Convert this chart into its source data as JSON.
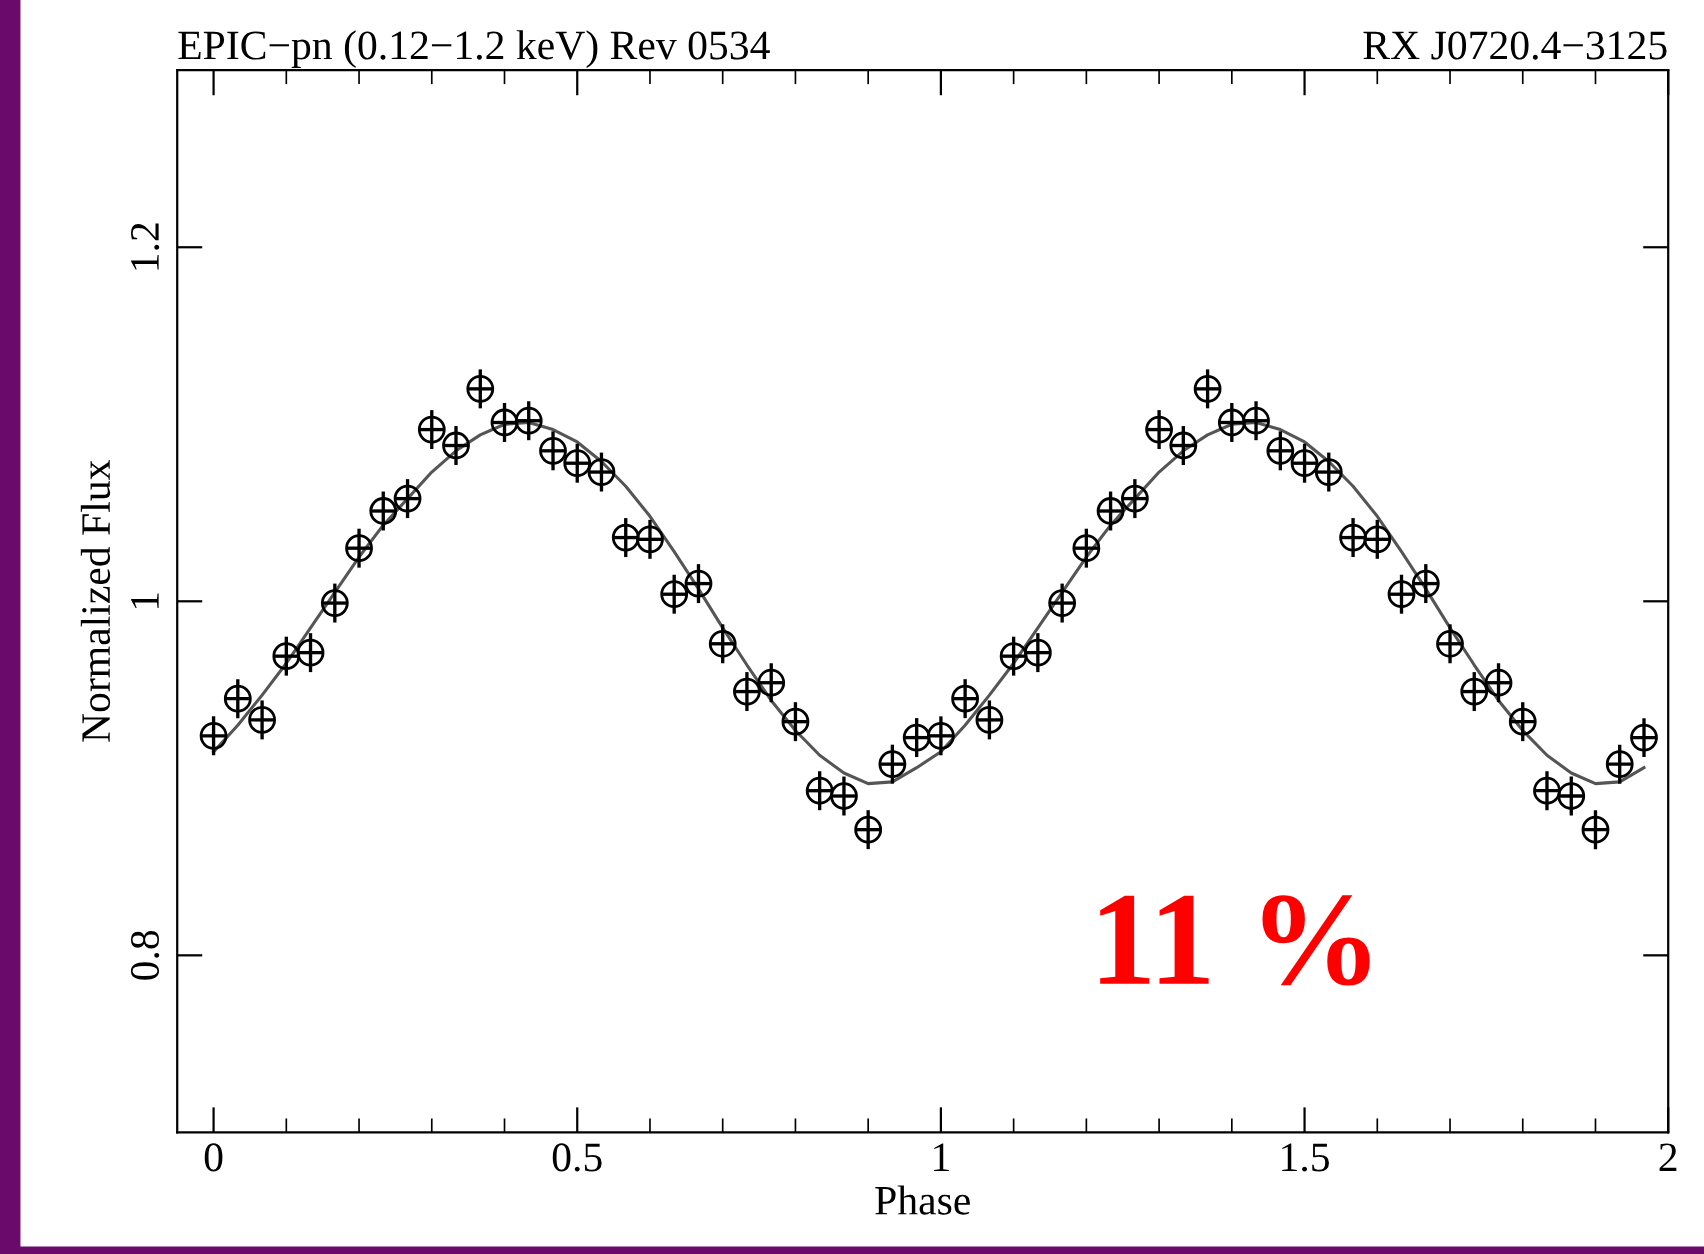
{
  "chart_data": {
    "type": "scatter",
    "title": "EPIC−pn (0.12−1.2 keV) Rev 0534",
    "subtitle": "RX J0720.4−3125",
    "xlabel": "Phase",
    "ylabel": "Normalized Flux",
    "annotations": [
      "11 %"
    ],
    "xlim": [
      -0.05,
      2.0
    ],
    "ylim": [
      0.7,
      1.3
    ],
    "xticks": [
      0,
      0.5,
      1,
      1.5,
      2
    ],
    "yticks": [
      0.8,
      1,
      1.2
    ],
    "grid": false,
    "legend": false,
    "series": [
      {
        "color": "#000000",
        "marker": "circle",
        "x": [
          0,
          0.0333,
          0.0667,
          0.1,
          0.1333,
          0.1667,
          0.2,
          0.2333,
          0.2667,
          0.3,
          0.3333,
          0.3667,
          0.4,
          0.4333,
          0.4667,
          0.5,
          0.5333,
          0.5667,
          0.6,
          0.6333,
          0.6667,
          0.7,
          0.7333,
          0.7667,
          0.8,
          0.8333,
          0.8667,
          0.9,
          0.9333,
          0.9667,
          1,
          1.0333,
          1.0667,
          1.1,
          1.1333,
          1.1667,
          1.2,
          1.2333,
          1.2667,
          1.3,
          1.3333,
          1.3667,
          1.4,
          1.4333,
          1.4667,
          1.5,
          1.5333,
          1.5667,
          1.6,
          1.6333,
          1.6667,
          1.7,
          1.7333,
          1.7667,
          1.8,
          1.8333,
          1.8667,
          1.9,
          1.9333,
          1.9667
        ],
        "values": [
          0.924,
          0.945,
          0.933,
          0.969,
          0.971,
          0.999,
          1.03,
          1.051,
          1.058,
          1.097,
          1.088,
          1.12,
          1.101,
          1.102,
          1.085,
          1.078,
          1.073,
          1.036,
          1.035,
          1.004,
          1.01,
          0.976,
          0.949,
          0.954,
          0.932,
          0.893,
          0.89,
          0.871,
          0.908,
          0.923,
          0.924,
          0.945,
          0.933,
          0.969,
          0.971,
          0.999,
          1.03,
          1.051,
          1.058,
          1.097,
          1.088,
          1.12,
          1.101,
          1.102,
          1.085,
          1.078,
          1.073,
          1.036,
          1.035,
          1.004,
          1.01,
          0.976,
          0.949,
          0.954,
          0.932,
          0.893,
          0.89,
          0.871,
          0.908,
          0.923
        ],
        "errors": [
          0.011,
          0.011,
          0.011,
          0.011,
          0.011,
          0.011,
          0.011,
          0.011,
          0.011,
          0.011,
          0.011,
          0.011,
          0.011,
          0.011,
          0.011,
          0.011,
          0.011,
          0.011,
          0.011,
          0.011,
          0.011,
          0.011,
          0.011,
          0.011,
          0.011,
          0.011,
          0.011,
          0.011,
          0.011,
          0.011,
          0.011,
          0.011,
          0.011,
          0.011,
          0.011,
          0.011,
          0.011,
          0.011,
          0.011,
          0.011,
          0.011,
          0.011,
          0.011,
          0.011,
          0.011,
          0.011,
          0.011,
          0.011,
          0.011,
          0.011,
          0.011,
          0.011,
          0.011,
          0.011,
          0.011,
          0.011,
          0.011,
          0.011,
          0.011,
          0.011
        ],
        "xerrors": [
          0.0167,
          0.0167,
          0.0167,
          0.0167,
          0.0167,
          0.0167,
          0.0167,
          0.0167,
          0.0167,
          0.0167,
          0.0167,
          0.0167,
          0.0167,
          0.0167,
          0.0167,
          0.0167,
          0.0167,
          0.0167,
          0.0167,
          0.0167,
          0.0167,
          0.0167,
          0.0167,
          0.0167,
          0.0167,
          0.0167,
          0.0167,
          0.0167,
          0.0167,
          0.0167,
          0.0167,
          0.0167,
          0.0167,
          0.0167,
          0.0167,
          0.0167,
          0.0167,
          0.0167,
          0.0167,
          0.0167,
          0.0167,
          0.0167,
          0.0167,
          0.0167,
          0.0167,
          0.0167,
          0.0167,
          0.0167,
          0.0167,
          0.0167,
          0.0167,
          0.0167,
          0.0167,
          0.0167,
          0.0167,
          0.0167,
          0.0167,
          0.0167,
          0.0167,
          0.0167
        ]
      },
      {
        "type": "line",
        "color": "#555555",
        "marker": "none",
        "line_style": "solid",
        "x": [
          0,
          0.0333,
          0.0667,
          0.1,
          0.1333,
          0.1667,
          0.2,
          0.2333,
          0.2667,
          0.3,
          0.3333,
          0.3667,
          0.4,
          0.4333,
          0.4667,
          0.5,
          0.5333,
          0.5667,
          0.6,
          0.6333,
          0.6667,
          0.7,
          0.7333,
          0.7667,
          0.8,
          0.8333,
          0.8667,
          0.9,
          0.9333,
          0.9667,
          1,
          1.0333,
          1.0667,
          1.1,
          1.1333,
          1.1667,
          1.2,
          1.2333,
          1.2667,
          1.3,
          1.3333,
          1.3667,
          1.4,
          1.4333,
          1.4667,
          1.5,
          1.5333,
          1.5667,
          1.6,
          1.6333,
          1.6667,
          1.7,
          1.7333,
          1.7667,
          1.8,
          1.8333,
          1.8667,
          1.9,
          1.9333,
          1.9667
        ],
        "values": [
          0.915,
          0.93,
          0.947,
          0.965,
          0.985,
          1.005,
          1.025,
          1.043,
          1.058,
          1.073,
          1.085,
          1.094,
          1.1,
          1.101,
          1.097,
          1.09,
          1.079,
          1.065,
          1.048,
          1.028,
          1.007,
          0.985,
          0.964,
          0.944,
          0.927,
          0.913,
          0.903,
          0.897,
          0.898,
          0.906,
          0.915,
          0.93,
          0.947,
          0.965,
          0.985,
          1.005,
          1.025,
          1.043,
          1.058,
          1.073,
          1.085,
          1.094,
          1.1,
          1.101,
          1.097,
          1.09,
          1.079,
          1.065,
          1.048,
          1.028,
          1.007,
          0.985,
          0.964,
          0.944,
          0.927,
          0.913,
          0.903,
          0.897,
          0.898,
          0.906
        ]
      }
    ]
  }
}
